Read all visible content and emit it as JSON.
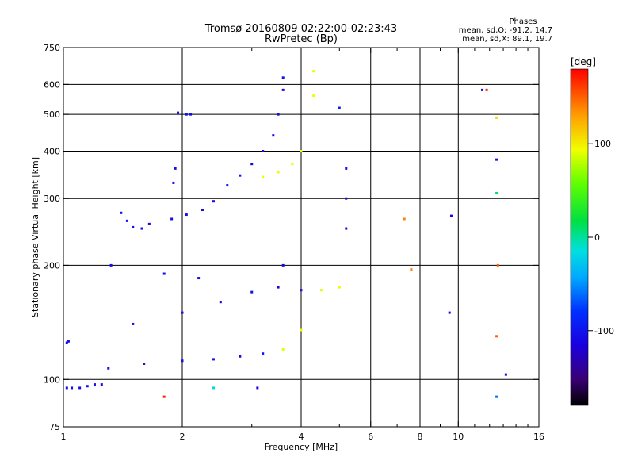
{
  "chart_data": {
    "type": "scatter",
    "title": "Tromsø 20160809 02:22:00-02:23:43",
    "subtitle": "RwPretec (Bp)",
    "xlabel": "Frequency [MHz]",
    "ylabel": "Stationary phase Virtual Height [km]",
    "x_scale": "log",
    "y_scale": "log",
    "xlim": [
      1,
      16
    ],
    "ylim": [
      75,
      750
    ],
    "x_ticks": [
      1,
      2,
      4,
      6,
      8,
      10,
      16
    ],
    "x_tick_labels": [
      "1",
      "2",
      "4",
      "6",
      "8",
      "10",
      "16"
    ],
    "x_minor_ticks": [
      3,
      5,
      7,
      9,
      11,
      12,
      13,
      14,
      15
    ],
    "x_grid": [
      2,
      4,
      6,
      8,
      10
    ],
    "y_ticks": [
      75,
      100,
      200,
      300,
      400,
      500,
      600,
      750
    ],
    "y_tick_labels": [
      "75",
      "100",
      "200",
      "300",
      "400",
      "500",
      "600",
      "750"
    ],
    "y_grid": [
      100,
      200,
      300,
      400,
      500,
      600
    ],
    "grid": true,
    "colorbar": {
      "label": "[deg]",
      "range": [
        -180,
        180
      ],
      "ticks": [
        100,
        0,
        -100
      ],
      "tick_labels": [
        "100",
        "0",
        "-100"
      ],
      "colormap": "rainbow"
    },
    "stats": {
      "heading": "Phases",
      "line_o": "mean, sd,O: -91.2, 14.7",
      "line_x": "mean, sd,X:  89.1, 19.7"
    },
    "series": [
      {
        "name": "",
        "points": [
          {
            "f": 1.02,
            "h": 95,
            "phase": -105
          },
          {
            "f": 1.05,
            "h": 95,
            "phase": -105
          },
          {
            "f": 1.1,
            "h": 95,
            "phase": -105
          },
          {
            "f": 1.15,
            "h": 96,
            "phase": -105
          },
          {
            "f": 1.2,
            "h": 97,
            "phase": -105
          },
          {
            "f": 1.25,
            "h": 97,
            "phase": -105
          },
          {
            "f": 1.02,
            "h": 125,
            "phase": -105
          },
          {
            "f": 1.03,
            "h": 126,
            "phase": -105
          },
          {
            "f": 1.32,
            "h": 200,
            "phase": -105
          },
          {
            "f": 1.4,
            "h": 275,
            "phase": -105
          },
          {
            "f": 1.45,
            "h": 262,
            "phase": -105
          },
          {
            "f": 1.5,
            "h": 252,
            "phase": -105
          },
          {
            "f": 1.58,
            "h": 250,
            "phase": -105
          },
          {
            "f": 1.65,
            "h": 257,
            "phase": -105
          },
          {
            "f": 1.88,
            "h": 265,
            "phase": -105
          },
          {
            "f": 1.9,
            "h": 330,
            "phase": -105
          },
          {
            "f": 1.92,
            "h": 360,
            "phase": -105
          },
          {
            "f": 1.95,
            "h": 505,
            "phase": -105
          },
          {
            "f": 2.05,
            "h": 500,
            "phase": -105
          },
          {
            "f": 2.1,
            "h": 500,
            "phase": -105
          },
          {
            "f": 2.05,
            "h": 272,
            "phase": -105
          },
          {
            "f": 2.25,
            "h": 280,
            "phase": -105
          },
          {
            "f": 2.4,
            "h": 295,
            "phase": -110
          },
          {
            "f": 2.6,
            "h": 325,
            "phase": -95
          },
          {
            "f": 2.8,
            "h": 345,
            "phase": -90
          },
          {
            "f": 3.0,
            "h": 370,
            "phase": -110
          },
          {
            "f": 3.2,
            "h": 400,
            "phase": -105
          },
          {
            "f": 3.4,
            "h": 440,
            "phase": -110
          },
          {
            "f": 3.5,
            "h": 500,
            "phase": -105
          },
          {
            "f": 3.6,
            "h": 580,
            "phase": -110
          },
          {
            "f": 3.6,
            "h": 625,
            "phase": -105
          },
          {
            "f": 3.2,
            "h": 342,
            "phase": 95
          },
          {
            "f": 3.5,
            "h": 352,
            "phase": 95
          },
          {
            "f": 3.8,
            "h": 370,
            "phase": 95
          },
          {
            "f": 4.0,
            "h": 400,
            "phase": 95
          },
          {
            "f": 4.3,
            "h": 560,
            "phase": 95
          },
          {
            "f": 4.3,
            "h": 650,
            "phase": 90
          },
          {
            "f": 5.0,
            "h": 520,
            "phase": -95
          },
          {
            "f": 5.2,
            "h": 360,
            "phase": -110
          },
          {
            "f": 5.2,
            "h": 300,
            "phase": -110
          },
          {
            "f": 5.2,
            "h": 250,
            "phase": -110
          },
          {
            "f": 1.3,
            "h": 107,
            "phase": -105
          },
          {
            "f": 1.6,
            "h": 110,
            "phase": -105
          },
          {
            "f": 2.0,
            "h": 112,
            "phase": -105
          },
          {
            "f": 2.4,
            "h": 113,
            "phase": -105
          },
          {
            "f": 2.8,
            "h": 115,
            "phase": -110
          },
          {
            "f": 3.2,
            "h": 117,
            "phase": -95
          },
          {
            "f": 3.6,
            "h": 120,
            "phase": 90
          },
          {
            "f": 4.0,
            "h": 135,
            "phase": 95
          },
          {
            "f": 1.5,
            "h": 140,
            "phase": -105
          },
          {
            "f": 2.0,
            "h": 150,
            "phase": -105
          },
          {
            "f": 2.5,
            "h": 160,
            "phase": -110
          },
          {
            "f": 3.0,
            "h": 170,
            "phase": -105
          },
          {
            "f": 3.5,
            "h": 175,
            "phase": -110
          },
          {
            "f": 4.0,
            "h": 172,
            "phase": -105
          },
          {
            "f": 4.5,
            "h": 172,
            "phase": 90
          },
          {
            "f": 5.0,
            "h": 175,
            "phase": 95
          },
          {
            "f": 1.8,
            "h": 190,
            "phase": -105
          },
          {
            "f": 2.2,
            "h": 185,
            "phase": -105
          },
          {
            "f": 3.6,
            "h": 200,
            "phase": -105
          },
          {
            "f": 7.3,
            "h": 265,
            "phase": 140
          },
          {
            "f": 7.6,
            "h": 195,
            "phase": 140
          },
          {
            "f": 9.5,
            "h": 150,
            "phase": -110
          },
          {
            "f": 9.6,
            "h": 270,
            "phase": -110
          },
          {
            "f": 11.5,
            "h": 580,
            "phase": -110
          },
          {
            "f": 11.8,
            "h": 580,
            "phase": 170
          },
          {
            "f": 12.5,
            "h": 490,
            "phase": 110
          },
          {
            "f": 12.5,
            "h": 380,
            "phase": -105
          },
          {
            "f": 12.5,
            "h": 310,
            "phase": 10
          },
          {
            "f": 12.6,
            "h": 200,
            "phase": 150
          },
          {
            "f": 12.5,
            "h": 130,
            "phase": 150
          },
          {
            "f": 13.2,
            "h": 103,
            "phase": -110
          },
          {
            "f": 12.5,
            "h": 90,
            "phase": -60
          },
          {
            "f": 1.8,
            "h": 90,
            "phase": 170
          },
          {
            "f": 2.4,
            "h": 95,
            "phase": -20
          },
          {
            "f": 3.1,
            "h": 95,
            "phase": -110
          }
        ]
      }
    ]
  }
}
